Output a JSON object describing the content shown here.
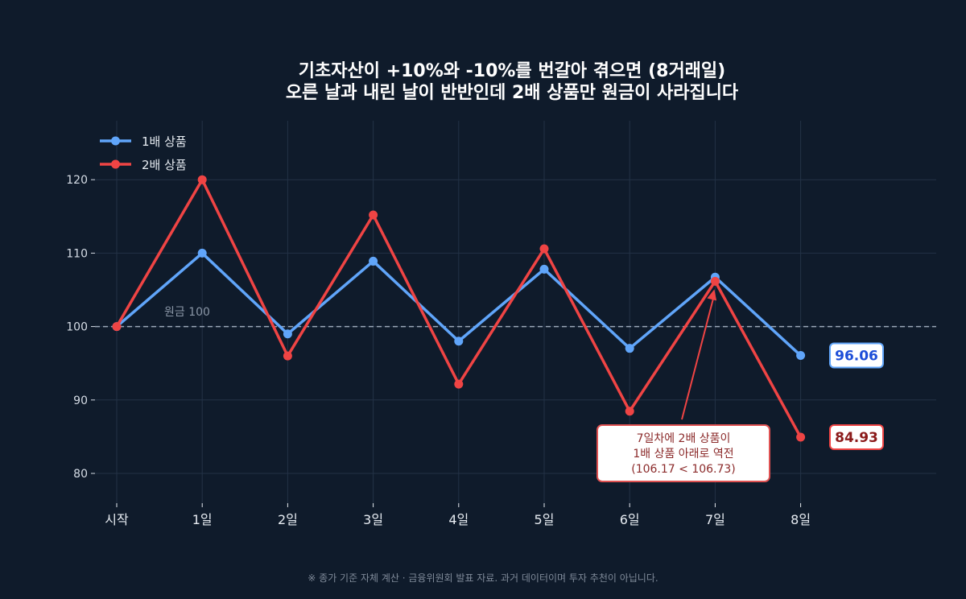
{
  "chart_data": {
    "type": "line",
    "title_line1": "기초자산이 +10%와 -10%를 번갈아 겪으면 (8거래일)",
    "title_line2": "오른 날과 내린 날이 반반인데 2배 상품만 원금이 사라집니다",
    "categories": [
      "시작",
      "1일",
      "2일",
      "3일",
      "4일",
      "5일",
      "6일",
      "7일",
      "8일"
    ],
    "ylim": [
      76,
      128
    ],
    "yticks": [
      80,
      90,
      100,
      110,
      120
    ],
    "grid": true,
    "legend_position": "top-left",
    "series": [
      {
        "name": "1배 상품",
        "color": "#60a5fa",
        "values": [
          100,
          110,
          99,
          108.9,
          98.01,
          107.81,
          97.03,
          106.73,
          96.06
        ]
      },
      {
        "name": "2배 상품",
        "color": "#ef4444",
        "values": [
          100,
          120,
          96,
          115.2,
          92.16,
          110.59,
          88.47,
          106.17,
          84.93
        ]
      }
    ],
    "baseline": {
      "value": 100,
      "label": "원금 100"
    },
    "end_labels": [
      "96.06",
      "84.93"
    ],
    "annotation": {
      "lines": [
        "7일차에 2배 상품이",
        "1배 상품 아래로 역전",
        "(106.17 < 106.73)"
      ],
      "target_index": 7
    },
    "footnote": "※ 종가 기준 자체 계산 · 금융위원회 발표 자료. 과거 데이터이며 투자 추천이 아닙니다."
  }
}
